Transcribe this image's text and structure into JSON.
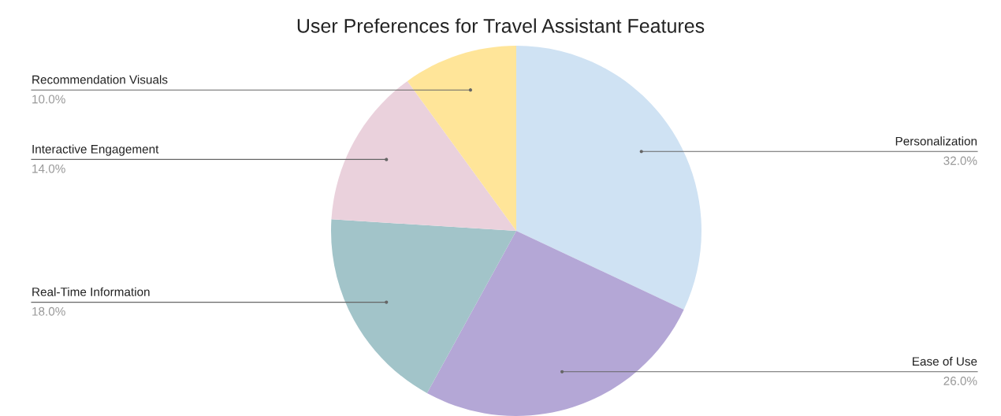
{
  "chart_data": {
    "type": "pie",
    "title": "User Preferences for Travel Assistant Features",
    "categories": [
      "Personalization",
      "Ease of Use",
      "Real-Time Information",
      "Interactive Engagement",
      "Recommendation Visuals"
    ],
    "values": [
      32,
      26,
      18,
      14,
      10
    ],
    "colors": [
      "#cfe2f3",
      "#b4a7d6",
      "#a2c4c9",
      "#ead1dc",
      "#ffe599"
    ],
    "value_labels": [
      "32.0%",
      "26.0%",
      "18.0%",
      "14.0%",
      "10.0%"
    ],
    "legend": false
  }
}
